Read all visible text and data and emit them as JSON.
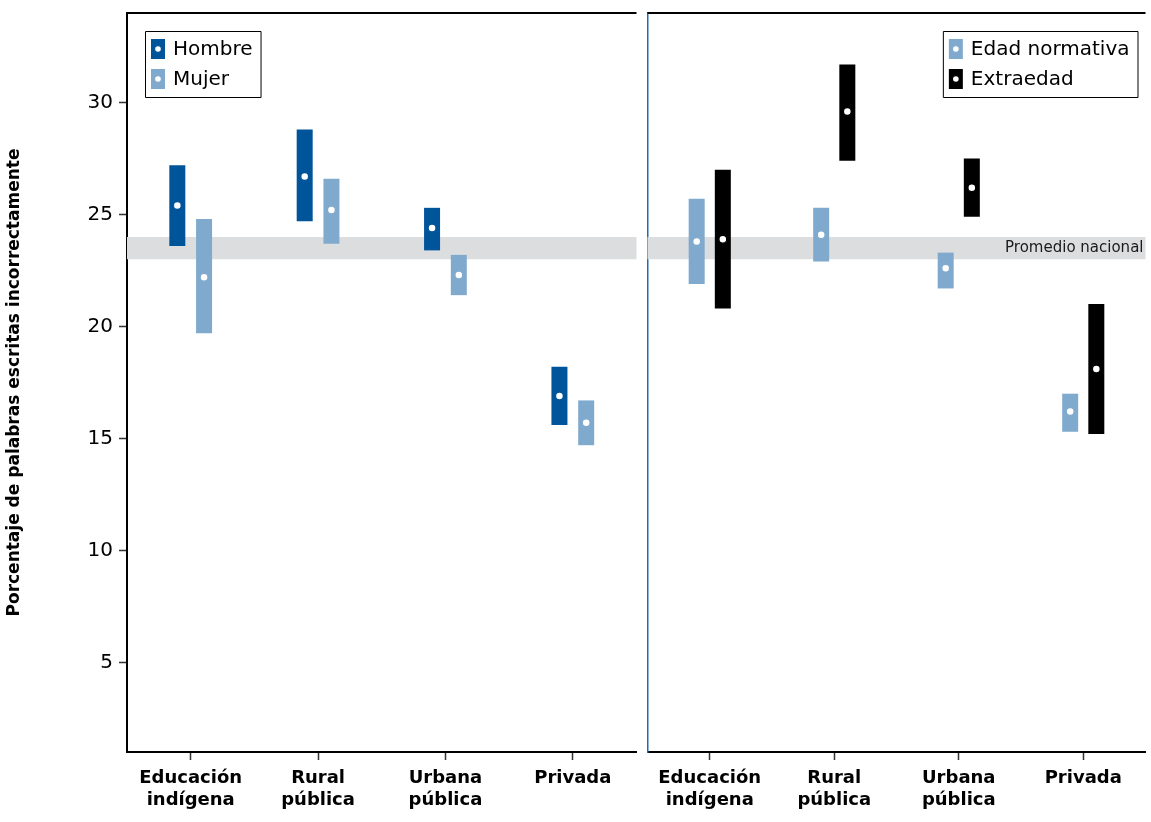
{
  "chart_data": [
    {
      "type": "scatter",
      "ylabel": "Porcentaje de palabras escritas incorrectamente",
      "categories": [
        "Educación indígena",
        "Rural pública",
        "Urbana pública",
        "Privada"
      ],
      "series": [
        {
          "name": "Hombre",
          "color": "#00549a",
          "values": [
            25.4,
            26.7,
            24.4,
            16.9
          ],
          "errors": [
            [
              23.6,
              27.2
            ],
            [
              24.7,
              28.8
            ],
            [
              23.4,
              25.3
            ],
            [
              15.6,
              18.2
            ]
          ]
        },
        {
          "name": "Mujer",
          "color": "#80aacd",
          "values": [
            22.2,
            25.2,
            22.3,
            15.7
          ],
          "errors": [
            [
              19.7,
              24.8
            ],
            [
              23.7,
              26.6
            ],
            [
              21.4,
              23.2
            ],
            [
              14.7,
              16.7
            ]
          ]
        }
      ],
      "ylim": [
        1,
        34
      ],
      "yticks": [
        5,
        10,
        15,
        20,
        25,
        30
      ],
      "bands": [
        {
          "axis": "y",
          "from": 23,
          "to": 24,
          "color": "#dcdddf"
        }
      ],
      "legend": "top left",
      "marker": "circle"
    },
    {
      "type": "scatter",
      "categories": [
        "Educación indígena",
        "Rural pública",
        "Urbana pública",
        "Privada"
      ],
      "series": [
        {
          "name": "Edad normativa",
          "color": "#80aacd",
          "values": [
            23.8,
            24.1,
            22.6,
            16.2
          ],
          "errors": [
            [
              21.9,
              25.7
            ],
            [
              22.9,
              25.3
            ],
            [
              21.7,
              23.3
            ],
            [
              15.3,
              17.0
            ]
          ]
        },
        {
          "name": "Extraedad",
          "color": "#000000",
          "values": [
            23.9,
            29.6,
            26.2,
            18.1
          ],
          "errors": [
            [
              20.8,
              27.0
            ],
            [
              27.4,
              31.7
            ],
            [
              24.9,
              27.5
            ],
            [
              15.2,
              21.0
            ]
          ]
        }
      ],
      "ylim": [
        1,
        34
      ],
      "tick_labels": "x",
      "bands": [
        {
          "axis": "y",
          "from": 23,
          "to": 24,
          "color": "#dcdddf",
          "label": "Promedio nacional"
        }
      ],
      "legend": "top right",
      "marker": "circle"
    }
  ]
}
